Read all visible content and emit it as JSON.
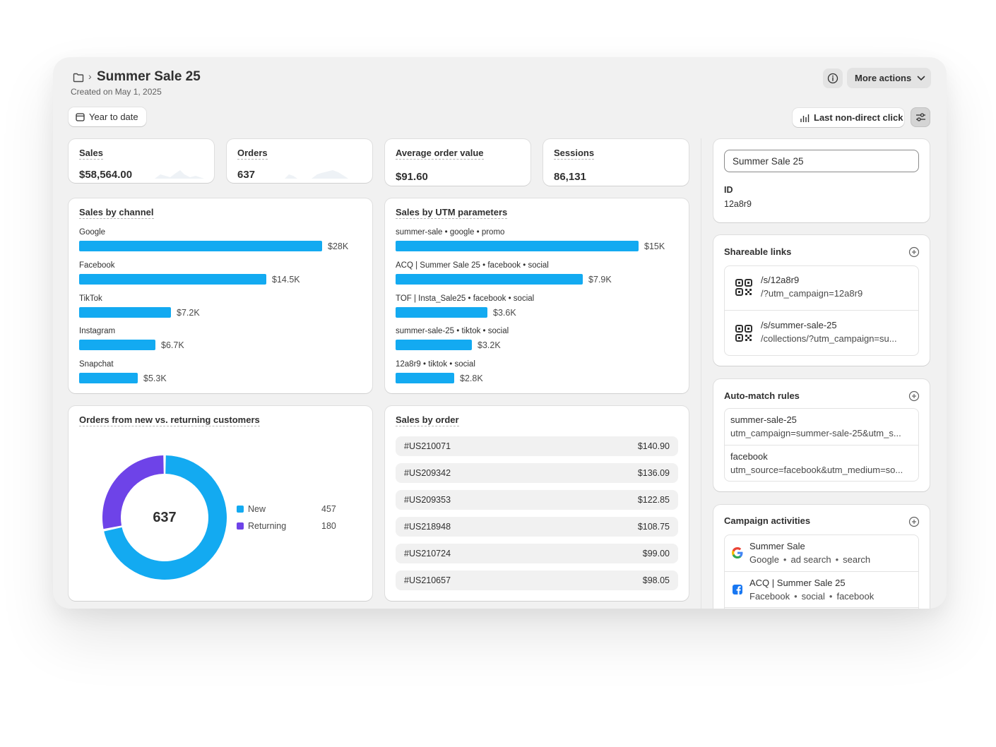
{
  "header": {
    "title": "Summer Sale 25",
    "subtitle": "Created on May 1, 2025",
    "more_actions_label": "More actions",
    "date_range_label": "Year to date",
    "attribution_label": "Last non-direct click"
  },
  "metrics": [
    {
      "label": "Sales",
      "value": "$58,564.00"
    },
    {
      "label": "Orders",
      "value": "637"
    },
    {
      "label": "Average order value",
      "value": "$91.60"
    },
    {
      "label": "Sessions",
      "value": "86,131"
    }
  ],
  "sales_by_channel": {
    "title": "Sales by channel",
    "rows": [
      {
        "label": "Google",
        "value_label": "$28K"
      },
      {
        "label": "Facebook",
        "value_label": "$14.5K"
      },
      {
        "label": "TikTok",
        "value_label": "$7.2K"
      },
      {
        "label": "Instagram",
        "value_label": "$6.7K"
      },
      {
        "label": "Snapchat",
        "value_label": "$5.3K"
      }
    ]
  },
  "sales_by_utm": {
    "title": "Sales by UTM parameters",
    "rows": [
      {
        "label": "summer-sale • google • promo",
        "value_label": "$15K"
      },
      {
        "label": "ACQ | Summer Sale 25 • facebook • social",
        "value_label": "$7.9K"
      },
      {
        "label": "TOF | Insta_Sale25 • facebook • social",
        "value_label": "$3.6K"
      },
      {
        "label": "summer-sale-25 • tiktok • social",
        "value_label": "$3.2K"
      },
      {
        "label": "12a8r9 • tiktok • social",
        "value_label": "$2.8K"
      }
    ]
  },
  "customers": {
    "title": "Orders from new vs. returning customers",
    "total": "637",
    "legend": [
      {
        "label": "New",
        "value": "457",
        "color": "#13aaf1"
      },
      {
        "label": "Returning",
        "value": "180",
        "color": "#6e43e8"
      }
    ]
  },
  "sales_by_order": {
    "title": "Sales by order",
    "rows": [
      {
        "id": "#US210071",
        "amount": "$140.90"
      },
      {
        "id": "#US209342",
        "amount": "$136.09"
      },
      {
        "id": "#US209353",
        "amount": "$122.85"
      },
      {
        "id": "#US218948",
        "amount": "$108.75"
      },
      {
        "id": "#US210724",
        "amount": "$99.00"
      },
      {
        "id": "#US210657",
        "amount": "$98.05"
      }
    ]
  },
  "campaign": {
    "name_value": "Summer Sale 25",
    "id_label": "ID",
    "id_value": "12a8r9"
  },
  "shareable_links": {
    "title": "Shareable links",
    "items": [
      {
        "path": "/s/12a8r9",
        "target": "/?utm_campaign=12a8r9"
      },
      {
        "path": "/s/summer-sale-25",
        "target": "/collections/?utm_campaign=su..."
      }
    ]
  },
  "auto_match": {
    "title": "Auto-match rules",
    "items": [
      {
        "name": "summer-sale-25",
        "rule": "utm_campaign=summer-sale-25&utm_s..."
      },
      {
        "name": "facebook",
        "rule": "utm_source=facebook&utm_medium=so..."
      }
    ]
  },
  "activities": {
    "title": "Campaign activities",
    "items": [
      {
        "name": "Summer Sale",
        "platform": "Google",
        "tag1": "ad search",
        "tag2": "search",
        "icon": "google-icon"
      },
      {
        "name": "ACQ | Summer Sale 25",
        "platform": "Facebook",
        "tag1": "social",
        "tag2": "facebook",
        "icon": "facebook-icon"
      }
    ]
  },
  "colors": {
    "bar": "#13aaf1",
    "new": "#13aaf1",
    "returning": "#6e43e8"
  }
}
